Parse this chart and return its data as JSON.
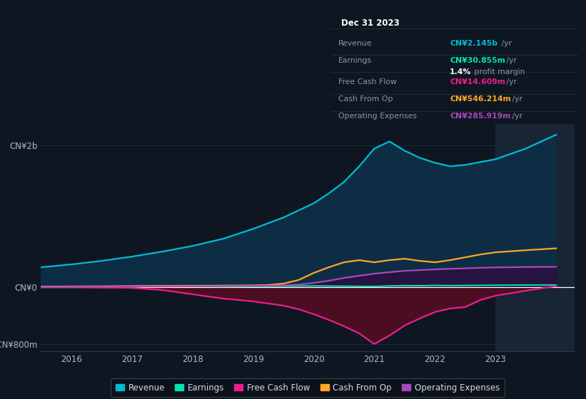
{
  "bg_color": "#0e1621",
  "plot_bg": "#0e1621",
  "highlight_bg": "#182030",
  "years": [
    2015.5,
    2016,
    2016.5,
    2017,
    2017.5,
    2018,
    2018.5,
    2019,
    2019.25,
    2019.5,
    2019.75,
    2020,
    2020.25,
    2020.5,
    2020.75,
    2021,
    2021.25,
    2021.5,
    2021.75,
    2022,
    2022.25,
    2022.5,
    2022.75,
    2023,
    2023.5,
    2024
  ],
  "revenue": [
    280,
    320,
    370,
    430,
    500,
    580,
    680,
    820,
    900,
    980,
    1080,
    1180,
    1320,
    1480,
    1700,
    1950,
    2050,
    1920,
    1820,
    1750,
    1700,
    1720,
    1760,
    1800,
    1950,
    2145
  ],
  "earnings": [
    5,
    8,
    10,
    12,
    14,
    10,
    8,
    10,
    12,
    14,
    16,
    18,
    16,
    14,
    12,
    10,
    18,
    22,
    20,
    25,
    22,
    24,
    26,
    28,
    30,
    31
  ],
  "free_cash_flow": [
    0,
    0,
    -5,
    -10,
    -40,
    -100,
    -160,
    -200,
    -230,
    -260,
    -310,
    -380,
    -460,
    -550,
    -650,
    -800,
    -680,
    -540,
    -440,
    -350,
    -300,
    -280,
    -180,
    -120,
    -50,
    15
  ],
  "cash_from_op": [
    8,
    10,
    12,
    15,
    18,
    20,
    22,
    25,
    30,
    50,
    100,
    200,
    280,
    350,
    380,
    350,
    380,
    400,
    370,
    350,
    380,
    420,
    460,
    490,
    520,
    546
  ],
  "operating_expenses": [
    4,
    5,
    6,
    8,
    10,
    12,
    15,
    18,
    20,
    25,
    35,
    60,
    90,
    130,
    160,
    190,
    210,
    230,
    240,
    250,
    258,
    265,
    272,
    278,
    283,
    286
  ],
  "revenue_color": "#00bcd4",
  "earnings_color": "#00e5b0",
  "free_cash_flow_color": "#e91e8c",
  "cash_from_op_color": "#ffa726",
  "operating_expenses_color": "#ab47bc",
  "revenue_fill_color": "#0d2d45",
  "free_cash_flow_fill_color": "#4a0e20",
  "opex_fill_color": "#2a1040",
  "zero_line_color": "#ffffff",
  "grid_color": "#1a2a3a",
  "text_color": "#8899aa",
  "highlight_color": "#182535",
  "ylim_min": -900,
  "ylim_max": 2300,
  "yticks": [
    -800,
    0,
    2000
  ],
  "ytick_labels": [
    "-CN¥800m",
    "CN¥0",
    "CN¥2b"
  ],
  "xlabel_years": [
    2016,
    2017,
    2018,
    2019,
    2020,
    2021,
    2022,
    2023
  ],
  "info_box": {
    "title": "Dec 31 2023",
    "rows": [
      {
        "label": "Revenue",
        "value": "CN¥2.145b",
        "suffix": " /yr",
        "color": "#00bcd4",
        "extra": null
      },
      {
        "label": "Earnings",
        "value": "CN¥30.855m",
        "suffix": " /yr",
        "color": "#00e5b0",
        "extra": "1.4% profit margin"
      },
      {
        "label": "Free Cash Flow",
        "value": "CN¥14.609m",
        "suffix": " /yr",
        "color": "#e91e8c",
        "extra": null
      },
      {
        "label": "Cash From Op",
        "value": "CN¥546.214m",
        "suffix": " /yr",
        "color": "#ffa726",
        "extra": null
      },
      {
        "label": "Operating Expenses",
        "value": "CN¥285.919m",
        "suffix": " /yr",
        "color": "#ab47bc",
        "extra": null
      }
    ]
  },
  "legend_entries": [
    {
      "label": "Revenue",
      "color": "#00bcd4"
    },
    {
      "label": "Earnings",
      "color": "#00e5b0"
    },
    {
      "label": "Free Cash Flow",
      "color": "#e91e8c"
    },
    {
      "label": "Cash From Op",
      "color": "#ffa726"
    },
    {
      "label": "Operating Expenses",
      "color": "#ab47bc"
    }
  ]
}
